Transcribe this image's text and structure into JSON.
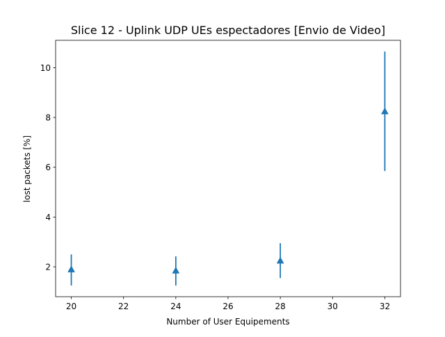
{
  "chart_data": {
    "type": "scatter",
    "title": "Slice 12 - Uplink UDP UEs espectadores [Envio de Video]",
    "xlabel": "Number of User Equipements",
    "ylabel": "lost packets [%]",
    "xlim": [
      19.4,
      32.6
    ],
    "ylim": [
      0.8,
      11.1
    ],
    "x_ticks": [
      "20",
      "22",
      "24",
      "26",
      "28",
      "30",
      "32"
    ],
    "y_ticks": [
      "2",
      "4",
      "6",
      "8",
      "10"
    ],
    "grid": false,
    "marker": "triangle-up",
    "color": "#1f77b4",
    "series": [
      {
        "x": [
          20,
          24,
          28,
          32
        ],
        "y": [
          1.9,
          1.85,
          2.25,
          8.25
        ],
        "err_low": [
          1.25,
          1.25,
          1.55,
          5.85
        ],
        "err_high": [
          2.5,
          2.42,
          2.95,
          10.65
        ]
      }
    ]
  }
}
